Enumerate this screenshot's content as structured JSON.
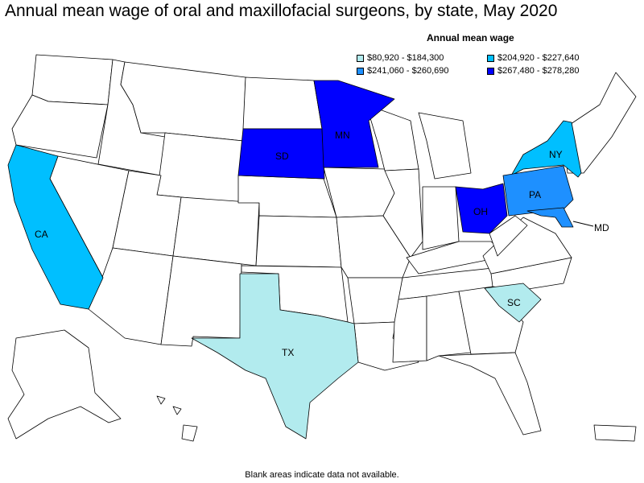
{
  "title": "Annual mean wage of oral and maxillofacial surgeons, by state, May 2020",
  "legend": {
    "title": "Annual mean wage",
    "items": [
      {
        "label": "$80,920 - $184,300",
        "color": "#b2ebee"
      },
      {
        "label": "$204,920 - $227,640",
        "color": "#00bfff"
      },
      {
        "label": "$241,060 - $260,690",
        "color": "#1e90ff"
      },
      {
        "label": "$267,480 - $278,280",
        "color": "#0000ff"
      }
    ]
  },
  "states": {
    "CA": {
      "abbr": "CA",
      "color": "#00bfff"
    },
    "TX": {
      "abbr": "TX",
      "color": "#b2ebee"
    },
    "SD": {
      "abbr": "SD",
      "color": "#0000ff"
    },
    "MN": {
      "abbr": "MN",
      "color": "#0000ff"
    },
    "NY": {
      "abbr": "NY",
      "color": "#00bfff"
    },
    "PA": {
      "abbr": "PA",
      "color": "#1e90ff"
    },
    "OH": {
      "abbr": "OH",
      "color": "#0000ff"
    },
    "MD": {
      "abbr": "MD",
      "color": "#1e90ff"
    },
    "SC": {
      "abbr": "SC",
      "color": "#b2ebee"
    }
  },
  "footnote": "Blank areas indicate data not available."
}
